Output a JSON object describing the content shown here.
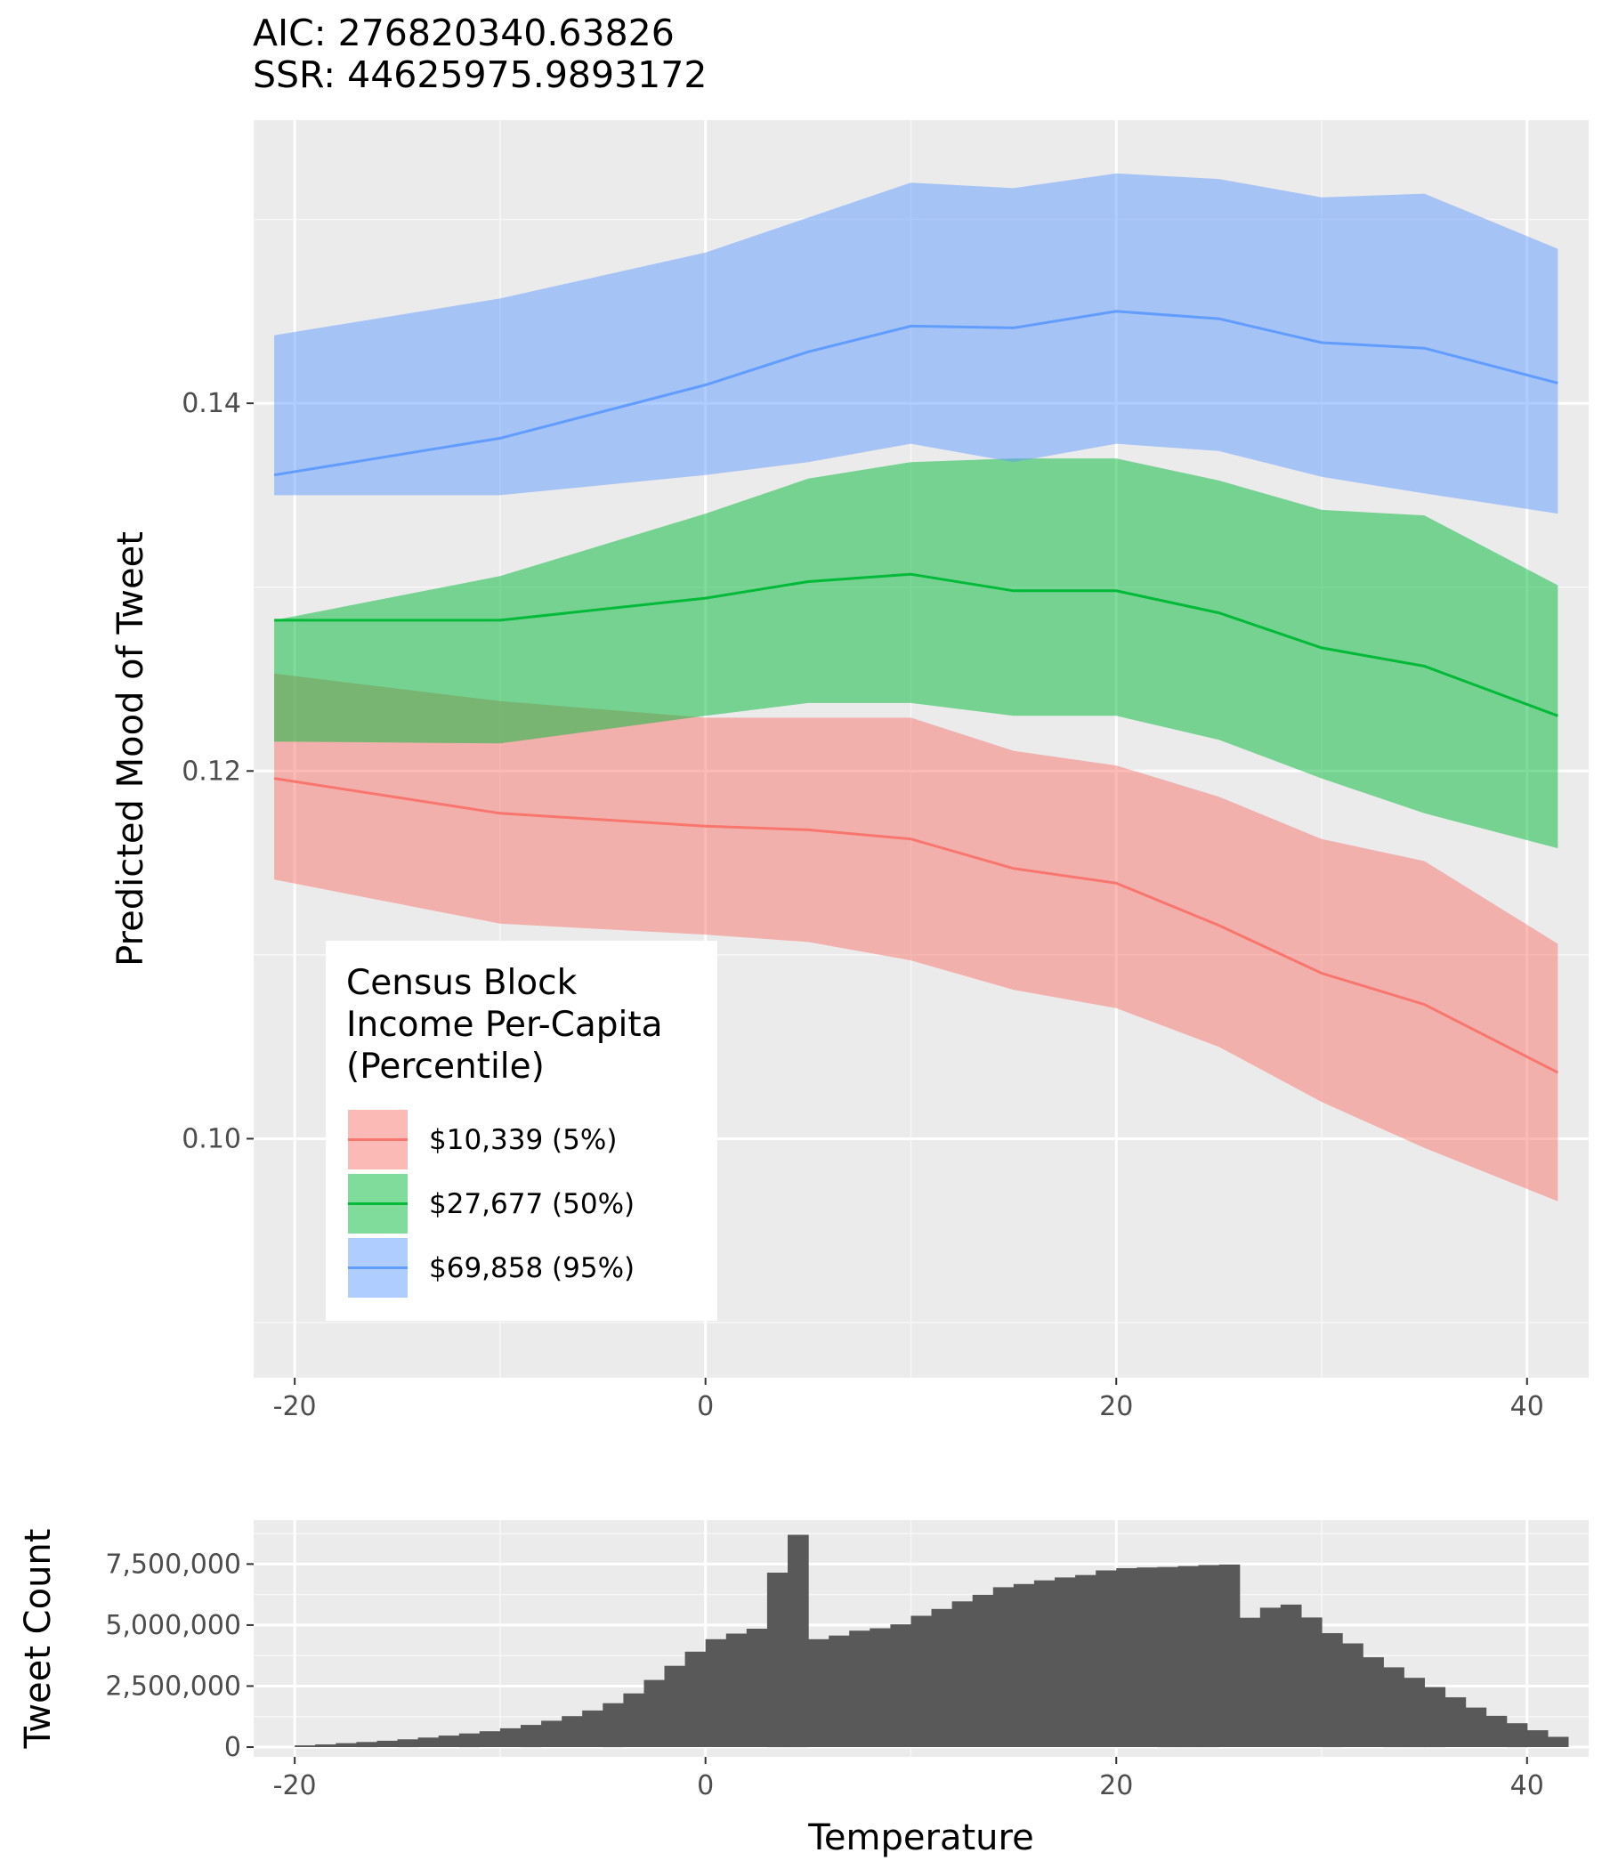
{
  "stats": {
    "aic": "AIC: 276820340.63826",
    "ssr": "SSR: 44625975.9893172"
  },
  "chart_data": [
    {
      "type": "line",
      "panel": "main",
      "ylabel": "Predicted Mood of Tweet",
      "xlabel": "",
      "xlim": [
        -22,
        43
      ],
      "ylim": [
        0.087,
        0.1554
      ],
      "xticks": [
        -20,
        0,
        20,
        40
      ],
      "xtick_labels": [
        "-20",
        "0",
        "20",
        "40"
      ],
      "yticks": [
        0.1,
        0.12,
        0.14
      ],
      "ytick_labels": [
        "0.10",
        "0.12",
        "0.14"
      ],
      "grid": true,
      "legend": {
        "title": [
          "Census Block",
          "Income Per-Capita",
          "(Percentile)"
        ],
        "placement": "inside-bottom-left"
      },
      "x": [
        -21,
        -10,
        0,
        5,
        10,
        15,
        20,
        25,
        30,
        35,
        41.5
      ],
      "series": [
        {
          "name": "$10,339 (5%)",
          "color": "#F8766D",
          "fill": "#F8766D",
          "values": [
            0.1196,
            0.1177,
            0.117,
            0.1168,
            0.1163,
            0.1147,
            0.1139,
            0.1116,
            0.109,
            0.1073,
            0.1036
          ],
          "lower": [
            0.1141,
            0.1117,
            0.1111,
            0.1107,
            0.1097,
            0.1081,
            0.1071,
            0.105,
            0.102,
            0.0995,
            0.0966
          ],
          "upper": [
            0.1253,
            0.1238,
            0.1229,
            0.1229,
            0.1229,
            0.1211,
            0.1203,
            0.1186,
            0.1163,
            0.1151,
            0.1106
          ]
        },
        {
          "name": "$27,677 (50%)",
          "color": "#00BA38",
          "fill": "#00BA38",
          "values": [
            0.1282,
            0.1282,
            0.1294,
            0.1303,
            0.1307,
            0.1298,
            0.1298,
            0.1286,
            0.1267,
            0.1257,
            0.123
          ],
          "lower": [
            0.1216,
            0.1215,
            0.123,
            0.1237,
            0.1237,
            0.123,
            0.123,
            0.1217,
            0.1196,
            0.1177,
            0.1158
          ],
          "upper": [
            0.1282,
            0.1306,
            0.134,
            0.1359,
            0.1368,
            0.137,
            0.137,
            0.1358,
            0.1342,
            0.1339,
            0.1301
          ]
        },
        {
          "name": "$69,858 (95%)",
          "color": "#619CFF",
          "fill": "#619CFF",
          "values": [
            0.1361,
            0.1381,
            0.141,
            0.1428,
            0.1442,
            0.1441,
            0.145,
            0.1446,
            0.1433,
            0.143,
            0.1411
          ],
          "lower": [
            0.135,
            0.135,
            0.1361,
            0.1368,
            0.1378,
            0.1368,
            0.1378,
            0.1374,
            0.136,
            0.1351,
            0.134
          ],
          "upper": [
            0.1437,
            0.1457,
            0.1482,
            0.1501,
            0.152,
            0.1517,
            0.1525,
            0.1522,
            0.1512,
            0.1514,
            0.1484
          ]
        }
      ]
    },
    {
      "type": "bar",
      "panel": "histogram",
      "xlabel": "Temperature",
      "ylabel": "Tweet Count",
      "xlim": [
        -22,
        43
      ],
      "ylim": [
        -400000,
        9300000
      ],
      "xticks": [
        -20,
        0,
        20,
        40
      ],
      "xtick_labels": [
        "-20",
        "0",
        "20",
        "40"
      ],
      "yticks": [
        0,
        2500000,
        5000000,
        7500000
      ],
      "ytick_labels": [
        "0",
        "2,500,000",
        "5,000,000",
        "7,500,000"
      ],
      "grid": true,
      "bin_width": 1,
      "color": "#595959",
      "bins_start": [
        -20,
        -19,
        -18,
        -17,
        -16,
        -15,
        -14,
        -13,
        -12,
        -11,
        -10,
        -9,
        -8,
        -7,
        -6,
        -5,
        -4,
        -3,
        -2,
        -1,
        0,
        1,
        2,
        3,
        4,
        5,
        6,
        7,
        8,
        9,
        10,
        11,
        12,
        13,
        14,
        15,
        16,
        17,
        18,
        19,
        20,
        21,
        22,
        23,
        24,
        25,
        26,
        27,
        28,
        29,
        30,
        31,
        32,
        33,
        34,
        35,
        36,
        37,
        38,
        39,
        40,
        41
      ],
      "values": [
        70000,
        110000,
        160000,
        210000,
        260000,
        320000,
        390000,
        470000,
        560000,
        650000,
        770000,
        910000,
        1080000,
        1270000,
        1500000,
        1800000,
        2200000,
        2750000,
        3330000,
        3910000,
        4420000,
        4650000,
        4850000,
        7150000,
        8700000,
        4420000,
        4570000,
        4770000,
        4870000,
        5030000,
        5380000,
        5660000,
        5970000,
        6240000,
        6550000,
        6680000,
        6830000,
        6950000,
        7050000,
        7240000,
        7330000,
        7360000,
        7380000,
        7420000,
        7460000,
        7480000,
        5300000,
        5710000,
        5840000,
        5310000,
        4670000,
        4250000,
        3680000,
        3270000,
        2840000,
        2460000,
        2040000,
        1620000,
        1280000,
        980000,
        690000,
        420000
      ]
    }
  ]
}
